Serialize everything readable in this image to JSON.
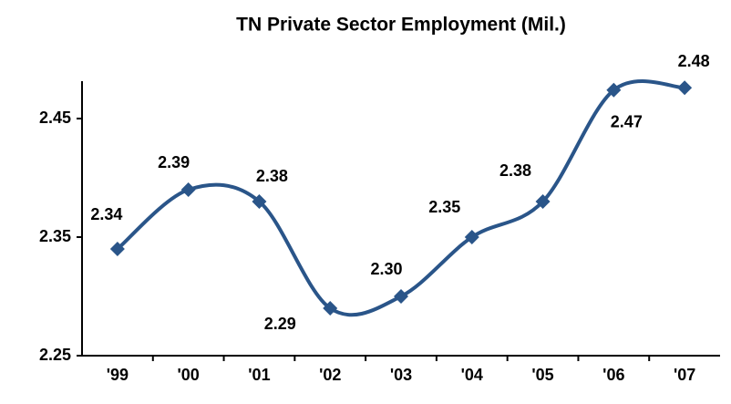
{
  "chart_data": {
    "type": "line",
    "title": "TN Private Sector Employment (Mil.)",
    "categories": [
      "'99",
      "'00",
      "'01",
      "'02",
      "'03",
      "'04",
      "'05",
      "'06",
      "'07"
    ],
    "series": [
      {
        "name": "TN Private Sector Employment",
        "color": "#2a5589",
        "values": [
          2.34,
          2.39,
          2.38,
          2.29,
          2.3,
          2.35,
          2.38,
          2.474,
          2.476
        ],
        "value_labels": [
          "2.34",
          "2.39",
          "2.38",
          "2.29",
          "2.30",
          "2.35",
          "2.38",
          "2.47",
          "2.48"
        ]
      }
    ],
    "ylim": [
      2.25,
      2.48
    ],
    "yticks": [
      2.25,
      2.35,
      2.45
    ],
    "grid": false,
    "smooth": true
  }
}
